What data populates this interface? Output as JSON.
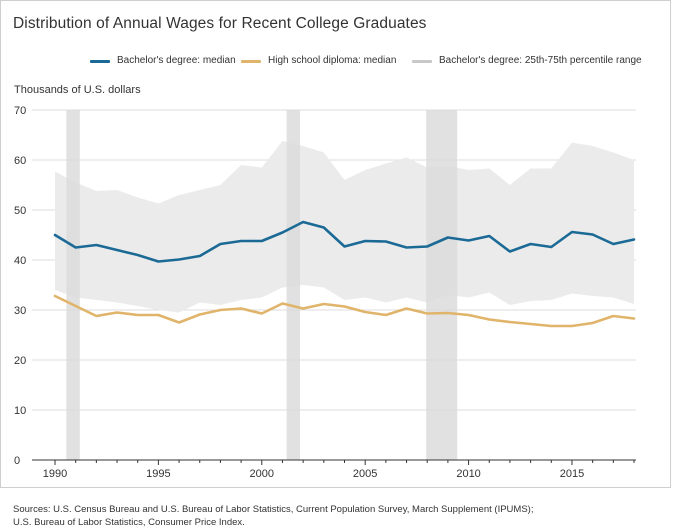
{
  "title": "Distribution of Annual Wages for Recent College Graduates",
  "y_unit_label": "Thousands of U.S. dollars",
  "sources": [
    "Sources: U.S. Census Bureau and U.S. Bureau of Labor Statistics, Current Population Survey, March Supplement (IPUMS);",
    "U.S. Bureau of Labor Statistics, Consumer Price Index."
  ],
  "colors": {
    "bachelor": "#1b6a96",
    "highschool": "#e0b46a",
    "range": "#c8c8c8",
    "range_fill": "#ebebeb",
    "recession": "#dcdcdc",
    "grid": "#dddddd",
    "axis": "#333333"
  },
  "chart_data": {
    "type": "line",
    "title": "Distribution of Annual Wages for Recent College Graduates",
    "ylabel": "Thousands of U.S. dollars",
    "xlim": [
      1990,
      2018
    ],
    "ylim": [
      0,
      70
    ],
    "x_ticks": [
      1990,
      1995,
      2000,
      2005,
      2010,
      2015
    ],
    "y_ticks": [
      0,
      10,
      20,
      30,
      40,
      50,
      60,
      70
    ],
    "grid": "horizontal",
    "legend_position": "top-right",
    "x": [
      1990,
      1991,
      1992,
      1993,
      1994,
      1995,
      1996,
      1997,
      1998,
      1999,
      2000,
      2001,
      2002,
      2003,
      2004,
      2005,
      2006,
      2007,
      2008,
      2009,
      2010,
      2011,
      2012,
      2013,
      2014,
      2015,
      2016,
      2017,
      2018
    ],
    "series": [
      {
        "name": "Bachelor's degree: median",
        "values": [
          45.0,
          42.5,
          43.0,
          42.0,
          41.0,
          39.7,
          40.1,
          40.8,
          43.2,
          43.8,
          43.8,
          45.5,
          47.6,
          46.5,
          42.7,
          43.8,
          43.7,
          42.5,
          42.7,
          44.5,
          43.9,
          44.8,
          41.7,
          43.2,
          42.6,
          45.6,
          45.1,
          43.2,
          44.1
        ]
      },
      {
        "name": "High school diploma: median",
        "values": [
          32.8,
          30.8,
          28.8,
          29.5,
          29.0,
          29.0,
          27.5,
          29.1,
          30.0,
          30.3,
          29.3,
          31.3,
          30.3,
          31.2,
          30.7,
          29.6,
          29.0,
          30.3,
          29.3,
          29.4,
          29.0,
          28.1,
          27.6,
          27.2,
          26.8,
          26.8,
          27.4,
          28.8,
          28.3
        ]
      },
      {
        "name": "Bachelor's degree: 25th-75th percentile range",
        "type": "range",
        "low": [
          34.0,
          32.5,
          32.0,
          31.5,
          30.8,
          30.0,
          29.5,
          31.5,
          31.0,
          32.0,
          32.5,
          34.5,
          35.0,
          34.5,
          32.0,
          32.5,
          31.5,
          32.5,
          31.5,
          33.0,
          32.5,
          33.5,
          31.0,
          31.8,
          32.0,
          33.3,
          32.8,
          32.5,
          31.2
        ],
        "high": [
          57.7,
          55.5,
          53.8,
          54.0,
          52.5,
          51.3,
          53.0,
          54.0,
          55.0,
          59.0,
          58.5,
          63.8,
          62.8,
          61.5,
          56.0,
          58.0,
          59.3,
          60.5,
          58.5,
          58.8,
          58.0,
          58.3,
          55.0,
          58.3,
          58.3,
          63.5,
          62.8,
          61.5,
          60.0
        ]
      }
    ],
    "shaded_periods": [
      [
        1990.55,
        1991.2
      ],
      [
        2001.2,
        2001.85
      ],
      [
        2007.95,
        2009.45
      ]
    ]
  }
}
